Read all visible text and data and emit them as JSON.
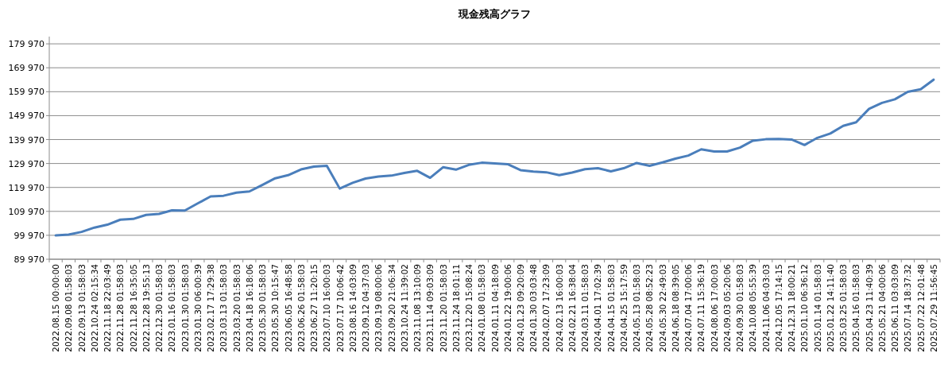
{
  "chart_data": {
    "type": "line",
    "title": "現金残高グラフ",
    "categories": [
      "2022.08.15 00:00:00",
      "2022.09.08 01:58:03",
      "2022.09.13 01:58:03",
      "2022.10.24 02:15:34",
      "2022.11.18 22:03:49",
      "2022.11.28 01:58:03",
      "2022.11.28 16:35:05",
      "2022.12.28 19:55:13",
      "2022.12.30 01:58:03",
      "2023.01.16 01:58:03",
      "2023.01.30 01:58:03",
      "2023.01.30 06:00:39",
      "2023.02.17 17:29:38",
      "2023.03.13 01:58:03",
      "2023.03.20 01:58:03",
      "2023.04.18 16:18:06",
      "2023.05.30 01:58:03",
      "2023.05.30 10:15:47",
      "2023.06.05 16:48:58",
      "2023.06.26 01:58:03",
      "2023.06.27 11:20:15",
      "2023.07.10 16:00:03",
      "2023.07.17 10:06:42",
      "2023.08.16 14:03:09",
      "2023.09.12 04:37:03",
      "2023.09.19 08:00:06",
      "2023.09.20 21:06:34",
      "2023.10.24 11:39:02",
      "2023.11.08 13:10:09",
      "2023.11.14 09:03:09",
      "2023.11.20 01:58:03",
      "2023.11.24 18:01:11",
      "2023.12.20 15:08:24",
      "2024.01.08 01:58:03",
      "2024.01.11 04:18:09",
      "2024.01.22 19:00:06",
      "2024.01.23 09:20:09",
      "2024.01.30 03:03:48",
      "2024.02.07 17:23:09",
      "2024.02.13 16:00:03",
      "2024.02.21 16:38:04",
      "2024.03.11 01:58:03",
      "2024.04.01 17:02:39",
      "2024.04.15 01:58:03",
      "2024.04.25 15:17:59",
      "2024.05.13 01:58:03",
      "2024.05.28 08:52:23",
      "2024.05.30 22:49:03",
      "2024.06.18 08:39:05",
      "2024.07.04 17:00:06",
      "2024.07.11 15:36:19",
      "2024.08.06 17:00:03",
      "2024.09.03 05:20:06",
      "2024.09.30 01:58:03",
      "2024.10.08 05:55:39",
      "2024.11.06 04:03:03",
      "2024.12.05 17:14:15",
      "2024.12.31 18:00:21",
      "2025.01.10 06:36:12",
      "2025.01.14 01:58:03",
      "2025.01.22 14:11:40",
      "2025.03.25 01:58:03",
      "2025.04.16 01:58:03",
      "2025.04.23 11:40:39",
      "2025.05.21 04:00:06",
      "2025.06.11 03:03:09",
      "2025.07.14 18:37:32",
      "2025.07.22 12:01:48",
      "2025.07.29 11:56:45"
    ],
    "series": [
      {
        "color": "#4a7ebb",
        "values": [
          99900,
          100300,
          101400,
          103200,
          104400,
          106500,
          106800,
          108500,
          108900,
          110400,
          110300,
          113300,
          116200,
          116500,
          117800,
          118300,
          121000,
          123800,
          125100,
          127500,
          128700,
          129000,
          119500,
          121900,
          123700,
          124500,
          124900,
          126000,
          126900,
          124000,
          128400,
          127400,
          129400,
          130300,
          130000,
          129700,
          127200,
          126600,
          126300,
          125100,
          126200,
          127600,
          128000,
          126700,
          128000,
          130200,
          129000,
          130400,
          132000,
          133300,
          135900,
          135000,
          135000,
          136600,
          139500,
          140100,
          140200,
          140000,
          137700,
          140700,
          142500,
          145700,
          147200,
          152800,
          155300,
          156800,
          159900,
          161000,
          165000
        ]
      }
    ],
    "ylim": [
      89970,
      183000
    ],
    "yticks": [
      {
        "value": 89970,
        "label": "89 970"
      },
      {
        "value": 99970,
        "label": "99 970"
      },
      {
        "value": 109970,
        "label": "109 970"
      },
      {
        "value": 119970,
        "label": "119 970"
      },
      {
        "value": 129970,
        "label": "129 970"
      },
      {
        "value": 139970,
        "label": "139 970"
      },
      {
        "value": 149970,
        "label": "149 970"
      },
      {
        "value": 159970,
        "label": "159 970"
      },
      {
        "value": 169970,
        "label": "169 970"
      },
      {
        "value": 179970,
        "label": "179 970"
      }
    ],
    "grid": "y"
  }
}
